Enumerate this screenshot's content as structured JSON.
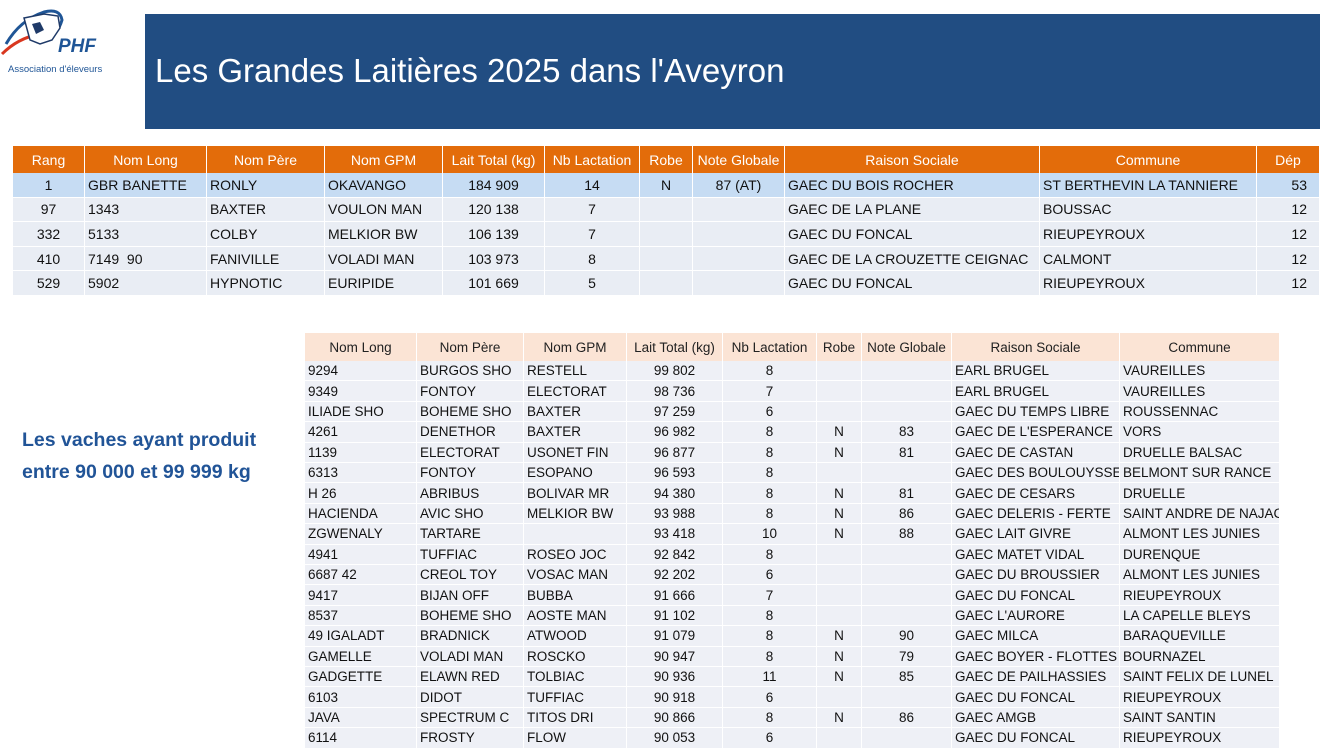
{
  "logo": {
    "brand": "PHF",
    "subtitle": "Association d'éleveurs"
  },
  "header": {
    "title": "Les Grandes Laitières 2025 dans l'Aveyron"
  },
  "top_table": {
    "columns": [
      "Rang",
      "Nom Long",
      "Nom Père",
      "Nom GPM",
      "Lait Total (kg)",
      "Nb Lactation",
      "Robe",
      "Note Globale",
      "Raison Sociale",
      "Commune",
      "Dép"
    ],
    "rows": [
      [
        1,
        "GBR BANETTE",
        "RONLY",
        "OKAVANGO",
        "184 909",
        14,
        "N",
        "87 (AT)",
        "GAEC DU BOIS ROCHER",
        "ST BERTHEVIN LA TANNIERE",
        53
      ],
      [
        97,
        "1343",
        "BAXTER",
        "VOULON MAN",
        "120 138",
        7,
        null,
        null,
        "GAEC DE LA PLANE",
        "BOUSSAC",
        12
      ],
      [
        332,
        "5133",
        "COLBY",
        "MELKIOR BW",
        "106 139",
        7,
        null,
        null,
        "GAEC DU FONCAL",
        "RIEUPEYROUX",
        12
      ],
      [
        410,
        "7149  90",
        "FANIVILLE",
        "VOLADI MAN",
        "103 973",
        8,
        null,
        null,
        "GAEC DE LA CROUZETTE CEIGNAC",
        "CALMONT",
        12
      ],
      [
        529,
        "5902",
        "HYPNOTIC",
        "EURIPIDE",
        "101 669",
        5,
        null,
        null,
        "GAEC DU FONCAL",
        "RIEUPEYROUX",
        12
      ]
    ]
  },
  "side_note": {
    "lines": [
      "Les vaches ayant produit",
      "entre 90 000 et 99 999 kg"
    ]
  },
  "bottom_table": {
    "columns": [
      "Nom Long",
      "Nom Père",
      "Nom GPM",
      "Lait Total (kg)",
      "Nb Lactation",
      "Robe",
      "Note Globale",
      "Raison Sociale",
      "Commune"
    ],
    "rows": [
      [
        "9294",
        "BURGOS SHO",
        "RESTELL",
        "99 802",
        8,
        null,
        null,
        "EARL BRUGEL",
        "VAUREILLES"
      ],
      [
        "9349",
        "FONTOY",
        "ELECTORAT",
        "98 736",
        7,
        null,
        null,
        "EARL BRUGEL",
        "VAUREILLES"
      ],
      [
        "ILIADE SHO",
        "BOHEME SHO",
        "BAXTER",
        "97 259",
        6,
        null,
        null,
        "GAEC DU TEMPS LIBRE",
        "ROUSSENNAC"
      ],
      [
        "4261",
        "DENETHOR",
        "BAXTER",
        "96 982",
        8,
        "N",
        83,
        "GAEC DE L'ESPERANCE",
        "VORS"
      ],
      [
        "1139",
        "ELECTORAT",
        "USONET FIN",
        "96 877",
        8,
        "N",
        81,
        "GAEC DE CASTAN",
        "DRUELLE BALSAC"
      ],
      [
        "6313",
        "FONTOY",
        "ESOPANO",
        "96 593",
        8,
        null,
        null,
        "GAEC DES BOULOUYSSES",
        "BELMONT SUR RANCE"
      ],
      [
        "H 26",
        "ABRIBUS",
        "BOLIVAR MR",
        "94 380",
        8,
        "N",
        81,
        "GAEC DE CESARS",
        "DRUELLE"
      ],
      [
        "HACIENDA",
        "AVIC SHO",
        "MELKIOR BW",
        "93 988",
        8,
        "N",
        86,
        "GAEC DELERIS - FERTE",
        "SAINT ANDRE DE NAJAC"
      ],
      [
        "ZGWENALY",
        "TARTARE",
        null,
        "93 418",
        10,
        "N",
        88,
        "GAEC LAIT GIVRE",
        "ALMONT LES JUNIES"
      ],
      [
        "4941",
        "TUFFIAC",
        "ROSEO JOC",
        "92 842",
        8,
        null,
        null,
        "GAEC MATET VIDAL",
        "DURENQUE"
      ],
      [
        "6687 42",
        "CREOL TOY",
        "VOSAC MAN",
        "92 202",
        6,
        null,
        null,
        "GAEC DU BROUSSIER",
        "ALMONT LES JUNIES"
      ],
      [
        "9417",
        "BIJAN OFF",
        "BUBBA",
        "91 666",
        7,
        null,
        null,
        "GAEC DU FONCAL",
        "RIEUPEYROUX"
      ],
      [
        "8537",
        "BOHEME SHO",
        "AOSTE MAN",
        "91 102",
        8,
        null,
        null,
        "GAEC L'AURORE",
        "LA CAPELLE BLEYS"
      ],
      [
        "49 IGALADT",
        "BRADNICK",
        "ATWOOD",
        "91 079",
        8,
        "N",
        90,
        "GAEC MILCA",
        "BARAQUEVILLE"
      ],
      [
        "GAMELLE",
        "VOLADI MAN",
        "ROSCKO",
        "90 947",
        8,
        "N",
        79,
        "GAEC BOYER - FLOTTES",
        "BOURNAZEL"
      ],
      [
        "GADGETTE",
        "ELAWN RED",
        "TOLBIAC",
        "90 936",
        11,
        "N",
        85,
        "GAEC DE PAILHASSIES",
        "SAINT FELIX DE LUNEL"
      ],
      [
        "6103",
        "DIDOT",
        "TUFFIAC",
        "90 918",
        6,
        null,
        null,
        "GAEC DU FONCAL",
        "RIEUPEYROUX"
      ],
      [
        "JAVA",
        "SPECTRUM C",
        "TITOS DRI",
        "90 866",
        8,
        "N",
        86,
        "GAEC AMGB",
        "SAINT SANTIN"
      ],
      [
        "6114",
        "FROSTY",
        "FLOW",
        "90 053",
        6,
        null,
        null,
        "GAEC DU FONCAL",
        "RIEUPEYROUX"
      ]
    ]
  }
}
